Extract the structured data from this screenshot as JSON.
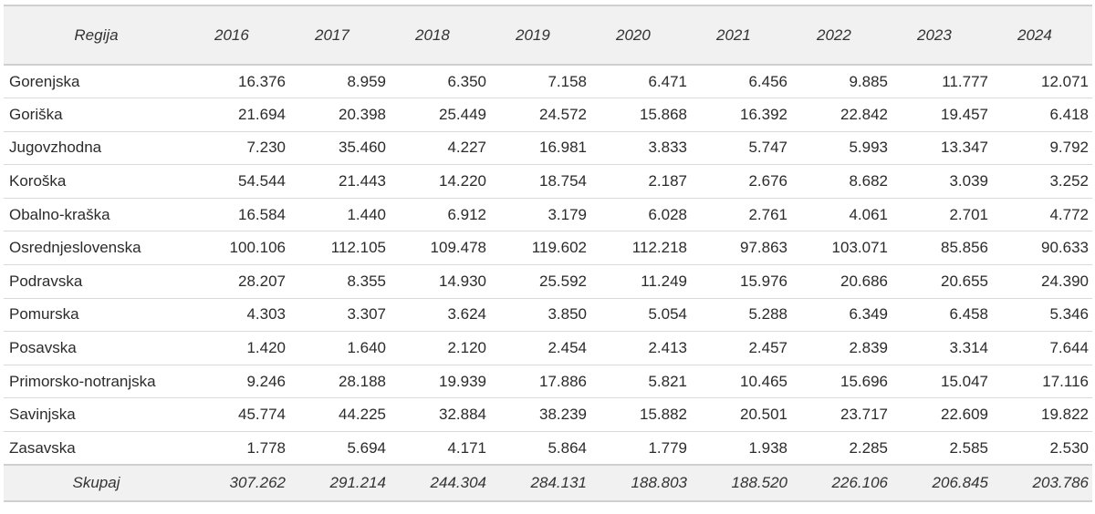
{
  "table": {
    "region_header": "Regija",
    "years": [
      "2016",
      "2017",
      "2018",
      "2019",
      "2020",
      "2021",
      "2022",
      "2023",
      "2024"
    ],
    "rows": [
      {
        "region": "Gorenjska",
        "values": [
          "16.376",
          "8.959",
          "6.350",
          "7.158",
          "6.471",
          "6.456",
          "9.885",
          "11.777",
          "12.071"
        ]
      },
      {
        "region": "Goriška",
        "values": [
          "21.694",
          "20.398",
          "25.449",
          "24.572",
          "15.868",
          "16.392",
          "22.842",
          "19.457",
          "6.418"
        ]
      },
      {
        "region": "Jugovzhodna",
        "values": [
          "7.230",
          "35.460",
          "4.227",
          "16.981",
          "3.833",
          "5.747",
          "5.993",
          "13.347",
          "9.792"
        ]
      },
      {
        "region": "Koroška",
        "values": [
          "54.544",
          "21.443",
          "14.220",
          "18.754",
          "2.187",
          "2.676",
          "8.682",
          "3.039",
          "3.252"
        ]
      },
      {
        "region": "Obalno-kraška",
        "values": [
          "16.584",
          "1.440",
          "6.912",
          "3.179",
          "6.028",
          "2.761",
          "4.061",
          "2.701",
          "4.772"
        ]
      },
      {
        "region": "Osrednjeslovenska",
        "values": [
          "100.106",
          "112.105",
          "109.478",
          "119.602",
          "112.218",
          "97.863",
          "103.071",
          "85.856",
          "90.633"
        ]
      },
      {
        "region": "Podravska",
        "values": [
          "28.207",
          "8.355",
          "14.930",
          "25.592",
          "11.249",
          "15.976",
          "20.686",
          "20.655",
          "24.390"
        ]
      },
      {
        "region": "Pomurska",
        "values": [
          "4.303",
          "3.307",
          "3.624",
          "3.850",
          "5.054",
          "5.288",
          "6.349",
          "6.458",
          "5.346"
        ]
      },
      {
        "region": "Posavska",
        "values": [
          "1.420",
          "1.640",
          "2.120",
          "2.454",
          "2.413",
          "2.457",
          "2.839",
          "3.314",
          "7.644"
        ]
      },
      {
        "region": "Primorsko-notranjska",
        "values": [
          "9.246",
          "28.188",
          "19.939",
          "17.886",
          "5.821",
          "10.465",
          "15.696",
          "15.047",
          "17.116"
        ]
      },
      {
        "region": "Savinjska",
        "values": [
          "45.774",
          "44.225",
          "32.884",
          "38.239",
          "15.882",
          "20.501",
          "23.717",
          "22.609",
          "19.822"
        ]
      },
      {
        "region": "Zasavska",
        "values": [
          "1.778",
          "5.694",
          "4.171",
          "5.864",
          "1.779",
          "1.938",
          "2.285",
          "2.585",
          "2.530"
        ]
      }
    ],
    "total": {
      "label": "Skupaj",
      "values": [
        "307.262",
        "291.214",
        "244.304",
        "284.131",
        "188.803",
        "188.520",
        "226.106",
        "206.845",
        "203.786"
      ]
    }
  }
}
